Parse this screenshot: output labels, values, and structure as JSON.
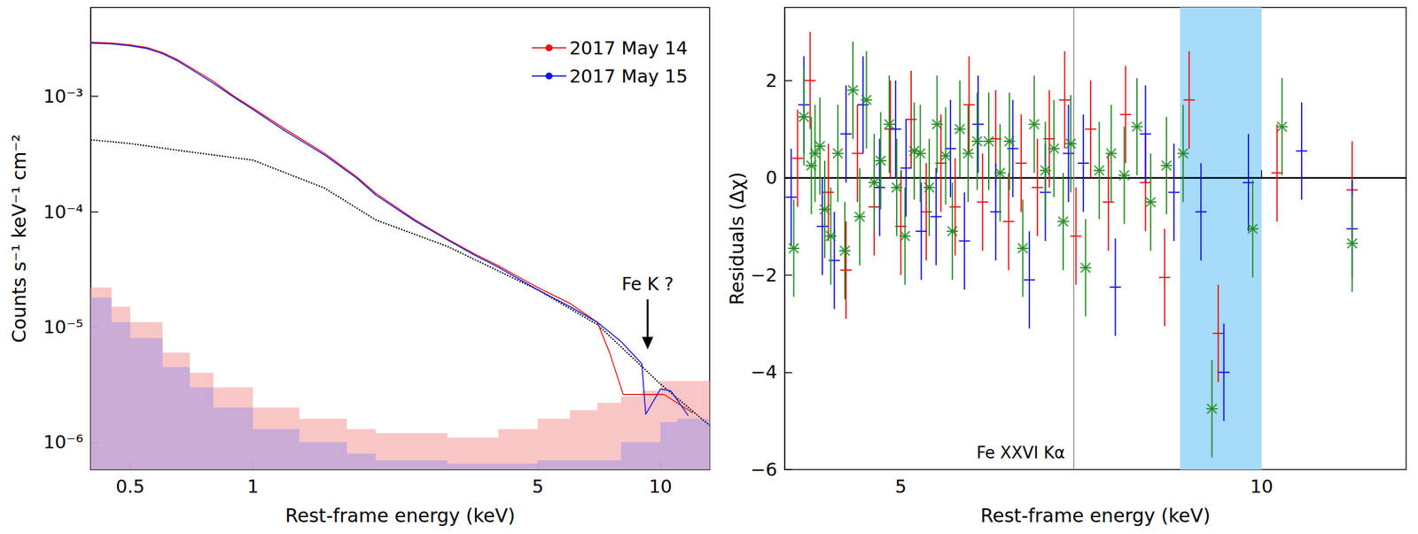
{
  "chart_data": [
    {
      "type": "line",
      "x_label": "Rest-frame energy (keV)",
      "y_label": "Counts s⁻¹ keV⁻¹ cm⁻²",
      "log": true,
      "grid": false,
      "legend": "upper right",
      "xlim": [
        0.4,
        13.2
      ],
      "xticks": [
        0.5,
        1,
        5,
        10
      ],
      "ylim": [
        5.8e-07,
        0.0059
      ],
      "yticks": [
        {
          "value": 1e-06,
          "label": "10⁻⁶"
        },
        {
          "value": 1e-05,
          "label": "10⁻⁵"
        },
        {
          "value": 0.0001,
          "label": "10⁻⁴"
        },
        {
          "value": 0.001,
          "label": "10⁻³"
        }
      ],
      "series": [
        {
          "type": "area",
          "color": "#f7b3b3",
          "x": [
            0.4,
            0.45,
            0.5,
            0.6,
            0.7,
            0.8,
            1,
            1.3,
            1.7,
            2,
            3,
            4,
            5,
            6,
            7,
            8,
            9,
            10,
            13.2
          ],
          "values": [
            2.2e-05,
            1.5e-05,
            1.1e-05,
            6e-06,
            4e-06,
            3e-06,
            2e-06,
            1.6e-06,
            1.3e-06,
            1.2e-06,
            1.1e-06,
            1.3e-06,
            1.6e-06,
            1.9e-06,
            2.2e-06,
            2.5e-06,
            2.8e-06,
            3.4e-06,
            3.4e-06
          ]
        },
        {
          "type": "area",
          "color": "#b9a3dc",
          "x": [
            0.4,
            0.45,
            0.5,
            0.6,
            0.7,
            0.8,
            1,
            1.3,
            1.7,
            2,
            3,
            5,
            8,
            10,
            11,
            13.2
          ],
          "values": [
            1.8e-05,
            1.1e-05,
            8e-06,
            4.5e-06,
            3e-06,
            2e-06,
            1.3e-06,
            1e-06,
            8e-07,
            7e-07,
            6.5e-07,
            7e-07,
            1e-06,
            1.5e-06,
            1.6e-06,
            1.4e-06
          ]
        },
        {
          "type": "line",
          "color": "#000000",
          "line_style": "dotted",
          "x": [
            0.4,
            0.5,
            0.7,
            1,
            1.5,
            2,
            3,
            5,
            7,
            10,
            13.2
          ],
          "values": [
            0.00042,
            0.00039,
            0.00033,
            0.00028,
            0.00016,
            8.5e-05,
            5e-05,
            2.1e-05,
            1.05e-05,
            3.2e-06,
            1.4e-06
          ]
        },
        {
          "name": "2017 May 14",
          "type": "line",
          "color": "#ee1111",
          "line_style": "solid",
          "x": [
            0.4,
            0.45,
            0.5,
            0.55,
            0.6,
            0.65,
            0.7,
            0.8,
            0.9,
            1,
            1.2,
            1.5,
            1.8,
            2,
            2.5,
            3,
            3.5,
            4,
            4.5,
            5,
            6,
            7,
            7.5,
            8.1,
            10.2,
            12
          ],
          "values": [
            0.00295,
            0.0029,
            0.0028,
            0.00265,
            0.0024,
            0.0021,
            0.0018,
            0.00135,
            0.001,
            0.00079,
            0.00052,
            0.00032,
            0.0002,
            0.000145,
            8.5e-05,
            5.8e-05,
            4.3e-05,
            3.4e-05,
            2.7e-05,
            2.2e-05,
            1.6e-05,
            1.1e-05,
            6e-06,
            2.6e-06,
            2.6e-06,
            1.8e-06
          ]
        },
        {
          "name": "2017 May 15",
          "type": "line",
          "color": "#1111ee",
          "line_style": "solid",
          "x": [
            0.4,
            0.45,
            0.5,
            0.55,
            0.6,
            0.65,
            0.7,
            0.8,
            0.9,
            1,
            1.2,
            1.5,
            1.8,
            2,
            2.5,
            3,
            3.5,
            4,
            4.5,
            5,
            6,
            7,
            8,
            9,
            9.2,
            10,
            10.6,
            11.7
          ],
          "values": [
            0.0029,
            0.00285,
            0.00275,
            0.0026,
            0.00235,
            0.00205,
            0.00175,
            0.0013,
            0.00098,
            0.00077,
            0.0005,
            0.00031,
            0.000195,
            0.00014,
            8.3e-05,
            5.7e-05,
            4.2e-05,
            3.3e-05,
            2.6e-05,
            2.1e-05,
            1.5e-05,
            1.1e-05,
            7.5e-06,
            4.8e-06,
            1.75e-06,
            2.9e-06,
            2.8e-06,
            1.7e-06
          ]
        }
      ],
      "annotations": [
        {
          "text": "Fe K ?",
          "x": 9.3,
          "y": 6.4e-06
        }
      ]
    },
    {
      "type": "errorbar",
      "x_label": "Rest-frame energy (keV)",
      "y_label": "Residuals (Δχ)",
      "log": "x",
      "grid": false,
      "xlim": [
        4,
        13.2
      ],
      "xticks": [
        5,
        10
      ],
      "ylim": [
        -6,
        3.5
      ],
      "yticks": [
        {
          "value": -6,
          "label": "−6"
        },
        {
          "value": -4,
          "label": "−4"
        },
        {
          "value": -2,
          "label": "−2"
        },
        0,
        2
      ],
      "hline": 0,
      "vline": {
        "x": 6.97,
        "label": "Fe XXVI Kα"
      },
      "band": {
        "x": [
          8.55,
          10
        ],
        "color": "#a6dbfa"
      },
      "series": [
        {
          "type": "errorbar",
          "color": "#ee1111",
          "marker": "none",
          "yerr": 1,
          "x": [
            4.1,
            4.2,
            4.35,
            4.5,
            4.6,
            4.75,
            4.9,
            5.0,
            5.1,
            5.25,
            5.4,
            5.55,
            5.7,
            5.85,
            6.0,
            6.15,
            6.3,
            6.5,
            6.65,
            6.85,
            7.0,
            7.2,
            7.45,
            7.7,
            8.0,
            8.3,
            8.7,
            9.2,
            10.3,
            11.9
          ],
          "values": [
            0.4,
            2.0,
            -0.3,
            -1.9,
            0.5,
            -0.6,
            1.0,
            -1.0,
            1.2,
            -0.7,
            0.3,
            -0.6,
            1.5,
            -0.5,
            0.8,
            -0.9,
            0.3,
            -0.2,
            0.8,
            1.6,
            -1.2,
            1.0,
            -0.5,
            1.3,
            -0.1,
            -2.05,
            1.6,
            -3.2,
            0.1,
            -0.25
          ]
        },
        {
          "type": "errorbar",
          "color": "#1111ee",
          "marker": "none",
          "yerr": 1,
          "x": [
            4.05,
            4.15,
            4.3,
            4.4,
            4.5,
            4.65,
            4.8,
            4.95,
            5.05,
            5.2,
            5.35,
            5.5,
            5.65,
            5.8,
            6.0,
            6.2,
            6.4,
            6.6,
            6.9,
            7.1,
            7.55,
            8.0,
            8.45,
            8.9,
            9.3,
            9.75,
            10.8,
            11.9
          ],
          "values": [
            -0.4,
            1.5,
            -1.0,
            -1.7,
            0.9,
            1.5,
            -0.2,
            1.0,
            0.2,
            -1.1,
            -0.8,
            0.6,
            -1.3,
            1.1,
            -0.7,
            0.6,
            -2.1,
            -0.3,
            0.5,
            0.3,
            -2.25,
            0.9,
            -0.3,
            -0.7,
            -4.0,
            -0.1,
            0.55,
            -1.05
          ]
        },
        {
          "type": "errorbar",
          "color": "#228b22",
          "marker": "x",
          "yerr": 1,
          "x": [
            4.07,
            4.15,
            4.21,
            4.24,
            4.28,
            4.32,
            4.37,
            4.43,
            4.49,
            4.56,
            4.62,
            4.68,
            4.75,
            4.81,
            4.89,
            4.96,
            5.04,
            5.13,
            5.19,
            5.28,
            5.36,
            5.45,
            5.52,
            5.6,
            5.69,
            5.79,
            5.92,
            6.05,
            6.16,
            6.32,
            6.46,
            6.6,
            6.71,
            6.83,
            6.93,
            7.13,
            7.32,
            7.49,
            7.68,
            7.87,
            8.08,
            8.33,
            8.6,
            9.09,
            9.83,
            10.4,
            11.9
          ],
          "values": [
            -1.45,
            1.25,
            0.25,
            0.5,
            0.65,
            -0.65,
            -1.2,
            0.5,
            -1.5,
            1.8,
            -0.8,
            1.6,
            -0.1,
            0.35,
            1.1,
            -0.2,
            -1.2,
            0.55,
            0.5,
            -0.2,
            1.1,
            0.45,
            -1.1,
            1.0,
            0.5,
            0.75,
            0.75,
            0.1,
            0.75,
            -1.45,
            1.1,
            0.15,
            0.6,
            -0.9,
            0.7,
            -1.85,
            0.15,
            0.5,
            0.05,
            1.05,
            -0.5,
            0.25,
            0.5,
            -4.75,
            -1.05,
            1.05,
            -1.35
          ]
        }
      ]
    }
  ]
}
